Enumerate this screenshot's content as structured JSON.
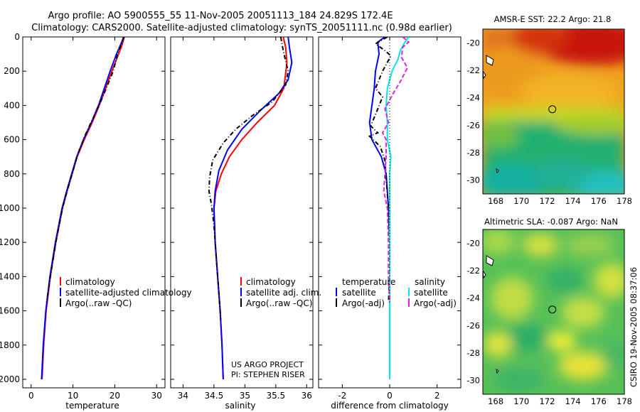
{
  "header": {
    "line1": "Argo profile: AO 5900555_55 11-Nov-2005 20051113_184 24.829S 172.4E",
    "line2": "Climatology: CARS2000. Satellite-adjusted climatology: synTS_20051111.nc (0.98d earlier)"
  },
  "footer": {
    "project": "US ARGO PROJECT",
    "pi": "PI: STEPHEN RISER",
    "stamp": "CSIRO 19-Nov-2005 08:37:06"
  },
  "colors": {
    "climatology": "#ff0000",
    "satellite": "#0000ff",
    "argo": "#000000",
    "sat_salinity": "#00e5e5",
    "argo_adj_salinity": "#e020e0"
  },
  "chart_data": [
    {
      "id": "temperature",
      "type": "line",
      "xlabel": "temperature",
      "ylabel": "",
      "xlim": [
        -2,
        32
      ],
      "ylim": [
        0,
        2050
      ],
      "y_inverted": true,
      "xticks": [
        0,
        10,
        20,
        30
      ],
      "yticks": [
        0,
        200,
        400,
        600,
        800,
        1000,
        1200,
        1400,
        1600,
        1800,
        2000
      ],
      "legend": [
        "climatology",
        "satellite-adjusted climatology",
        "Argo(..raw -QC)"
      ],
      "series": [
        {
          "name": "climatology",
          "color": "climatology",
          "dash": "",
          "points": [
            [
              22.3,
              0
            ],
            [
              21.7,
              50
            ],
            [
              20.9,
              100
            ],
            [
              19.3,
              200
            ],
            [
              17.8,
              300
            ],
            [
              16.3,
              400
            ],
            [
              14.6,
              500
            ],
            [
              12.7,
              600
            ],
            [
              11.0,
              700
            ],
            [
              9.8,
              800
            ],
            [
              8.6,
              900
            ],
            [
              7.5,
              1000
            ],
            [
              5.9,
              1200
            ],
            [
              4.6,
              1400
            ],
            [
              3.6,
              1600
            ],
            [
              3.0,
              1800
            ],
            [
              2.6,
              2000
            ]
          ]
        },
        {
          "name": "satellite-adjusted climatology",
          "color": "satellite",
          "dash": "",
          "points": [
            [
              22.2,
              0
            ],
            [
              21.3,
              50
            ],
            [
              20.4,
              100
            ],
            [
              18.9,
              200
            ],
            [
              17.5,
              300
            ],
            [
              16.1,
              400
            ],
            [
              14.4,
              500
            ],
            [
              12.5,
              600
            ],
            [
              10.9,
              700
            ],
            [
              9.7,
              800
            ],
            [
              8.5,
              900
            ],
            [
              7.4,
              1000
            ],
            [
              5.8,
              1200
            ],
            [
              4.5,
              1400
            ],
            [
              3.5,
              1600
            ],
            [
              2.9,
              1800
            ],
            [
              2.5,
              2000
            ]
          ]
        },
        {
          "name": "Argo(..raw -QC)",
          "color": "argo",
          "dash": "6,3,1,3",
          "points": [
            [
              22.1,
              0
            ],
            [
              21.6,
              40
            ],
            [
              20.8,
              90
            ],
            [
              19.6,
              200
            ],
            [
              18.3,
              280
            ],
            [
              16.6,
              380
            ],
            [
              14.7,
              480
            ],
            [
              12.8,
              580
            ],
            [
              11.1,
              690
            ],
            [
              9.8,
              800
            ],
            [
              8.6,
              900
            ],
            [
              7.5,
              1000
            ],
            [
              5.9,
              1200
            ],
            [
              4.6,
              1400
            ],
            [
              3.7,
              1550
            ]
          ]
        }
      ]
    },
    {
      "id": "salinity",
      "type": "line",
      "xlabel": "salinity",
      "ylabel": "",
      "xlim": [
        33.8,
        36.1
      ],
      "ylim": [
        0,
        2050
      ],
      "y_inverted": true,
      "xticks": [
        34,
        34.5,
        35,
        35.5,
        36
      ],
      "legend": [
        "climatology",
        "satellite adj. clim.",
        "Argo(..raw -QC)"
      ],
      "series": [
        {
          "name": "climatology",
          "color": "climatology",
          "dash": "",
          "points": [
            [
              35.62,
              0
            ],
            [
              35.66,
              60
            ],
            [
              35.68,
              150
            ],
            [
              35.63,
              300
            ],
            [
              35.48,
              400
            ],
            [
              35.2,
              500
            ],
            [
              34.95,
              600
            ],
            [
              34.75,
              700
            ],
            [
              34.62,
              800
            ],
            [
              34.53,
              900
            ],
            [
              34.5,
              1000
            ],
            [
              34.52,
              1200
            ],
            [
              34.56,
              1400
            ],
            [
              34.6,
              1600
            ],
            [
              34.63,
              1800
            ],
            [
              34.65,
              2000
            ]
          ]
        },
        {
          "name": "satellite adj. clim.",
          "color": "satellite",
          "dash": "",
          "points": [
            [
              35.7,
              0
            ],
            [
              35.72,
              60
            ],
            [
              35.76,
              150
            ],
            [
              35.7,
              250
            ],
            [
              35.55,
              330
            ],
            [
              35.25,
              430
            ],
            [
              34.95,
              540
            ],
            [
              34.72,
              660
            ],
            [
              34.58,
              780
            ],
            [
              34.52,
              900
            ],
            [
              34.5,
              1000
            ],
            [
              34.52,
              1200
            ],
            [
              34.56,
              1400
            ],
            [
              34.6,
              1600
            ],
            [
              34.63,
              1800
            ],
            [
              34.65,
              2000
            ]
          ]
        },
        {
          "name": "Argo(..raw -QC)",
          "color": "argo",
          "dash": "6,3,1,3",
          "points": [
            [
              35.58,
              0
            ],
            [
              35.62,
              80
            ],
            [
              35.7,
              200
            ],
            [
              35.66,
              280
            ],
            [
              35.44,
              380
            ],
            [
              35.12,
              460
            ],
            [
              34.85,
              540
            ],
            [
              34.65,
              620
            ],
            [
              34.48,
              720
            ],
            [
              34.43,
              820
            ],
            [
              34.42,
              900
            ],
            [
              34.46,
              980
            ],
            [
              34.5,
              1100
            ],
            [
              34.54,
              1300
            ],
            [
              34.58,
              1500
            ],
            [
              34.61,
              1650
            ]
          ]
        }
      ]
    },
    {
      "id": "difference",
      "type": "line",
      "xlabel": "difference from climatology",
      "ylabel": "",
      "xlim": [
        -3,
        3
      ],
      "ylim": [
        0,
        2050
      ],
      "y_inverted": true,
      "xticks": [
        -2,
        0,
        2
      ],
      "legend_temp_title": "temperature",
      "legend_sal_title": "salinity",
      "legend": [
        "satellite",
        "Argo(-adj)",
        "satellite",
        "Argo(-adj)"
      ],
      "series": [
        {
          "name": "temperature satellite",
          "color": "satellite",
          "dash": "",
          "points": [
            [
              -0.2,
              0
            ],
            [
              -0.5,
              30
            ],
            [
              -0.45,
              100
            ],
            [
              -0.6,
              200
            ],
            [
              -0.65,
              300
            ],
            [
              -0.75,
              400
            ],
            [
              -0.85,
              500
            ],
            [
              -0.75,
              600
            ],
            [
              -0.35,
              700
            ],
            [
              -0.15,
              800
            ],
            [
              -0.1,
              900
            ],
            [
              -0.05,
              1000
            ],
            [
              0,
              1200
            ],
            [
              0,
              1400
            ],
            [
              0,
              1600
            ],
            [
              0,
              1800
            ],
            [
              0,
              2000
            ]
          ]
        },
        {
          "name": "temperature Argo(-adj)",
          "color": "argo",
          "dash": "6,3,1,3",
          "points": [
            [
              -0.1,
              0
            ],
            [
              -0.6,
              40
            ],
            [
              -0.2,
              80
            ],
            [
              0.05,
              110
            ],
            [
              -0.3,
              200
            ],
            [
              -0.6,
              300
            ],
            [
              -0.3,
              350
            ],
            [
              -0.5,
              420
            ],
            [
              -0.8,
              520
            ],
            [
              -0.5,
              560
            ],
            [
              -0.85,
              580
            ],
            [
              -0.4,
              640
            ],
            [
              -0.2,
              720
            ],
            [
              -0.15,
              820
            ],
            [
              -0.1,
              920
            ],
            [
              -0.05,
              1000
            ],
            [
              0,
              1200
            ],
            [
              0,
              1400
            ],
            [
              -0.05,
              1550
            ]
          ]
        },
        {
          "name": "salinity satellite",
          "color": "sat_salinity",
          "dash": "",
          "points": [
            [
              0.8,
              0
            ],
            [
              0.6,
              40
            ],
            [
              0.45,
              80
            ],
            [
              0.35,
              130
            ],
            [
              0.1,
              200
            ],
            [
              -0.1,
              300
            ],
            [
              -0.15,
              400
            ],
            [
              -0.1,
              500
            ],
            [
              -0.1,
              600
            ],
            [
              0.05,
              700
            ],
            [
              0,
              800
            ],
            [
              0,
              1000
            ],
            [
              0,
              1200
            ],
            [
              0,
              1400
            ],
            [
              0,
              1600
            ],
            [
              0,
              1800
            ],
            [
              0,
              2000
            ]
          ]
        },
        {
          "name": "salinity Argo(-adj)",
          "color": "argo_adj_salinity",
          "dash": "6,3",
          "points": [
            [
              0.55,
              0
            ],
            [
              0.8,
              30
            ],
            [
              0.55,
              60
            ],
            [
              0.5,
              120
            ],
            [
              0.75,
              180
            ],
            [
              0.45,
              260
            ],
            [
              0.15,
              330
            ],
            [
              -0.2,
              420
            ],
            [
              -0.05,
              500
            ],
            [
              -0.3,
              560
            ],
            [
              -0.15,
              600
            ],
            [
              -0.15,
              700
            ],
            [
              -0.2,
              800
            ],
            [
              -0.25,
              900
            ],
            [
              -0.1,
              1000
            ],
            [
              -0.05,
              1200
            ],
            [
              -0.05,
              1400
            ],
            [
              0,
              1550
            ]
          ]
        }
      ]
    },
    {
      "id": "sst_map",
      "type": "heatmap",
      "title": "AMSR-E SST: 22.2 Argo: 21.8",
      "xlim": [
        167,
        178
      ],
      "ylim": [
        -31,
        -19
      ],
      "xticks": [
        168,
        170,
        172,
        174,
        176,
        178
      ],
      "yticks": [
        -20,
        -22,
        -24,
        -26,
        -28,
        -30
      ],
      "marker": [
        172.4,
        -24.829
      ]
    },
    {
      "id": "sla_map",
      "type": "heatmap",
      "title": "Altimetric SLA: -0.087 Argo: NaN",
      "xlim": [
        167,
        178
      ],
      "ylim": [
        -31,
        -19
      ],
      "xticks": [
        168,
        170,
        172,
        174,
        176,
        178
      ],
      "yticks": [
        -20,
        -22,
        -24,
        -26,
        -28,
        -30
      ],
      "marker": [
        172.4,
        -24.829
      ]
    }
  ]
}
